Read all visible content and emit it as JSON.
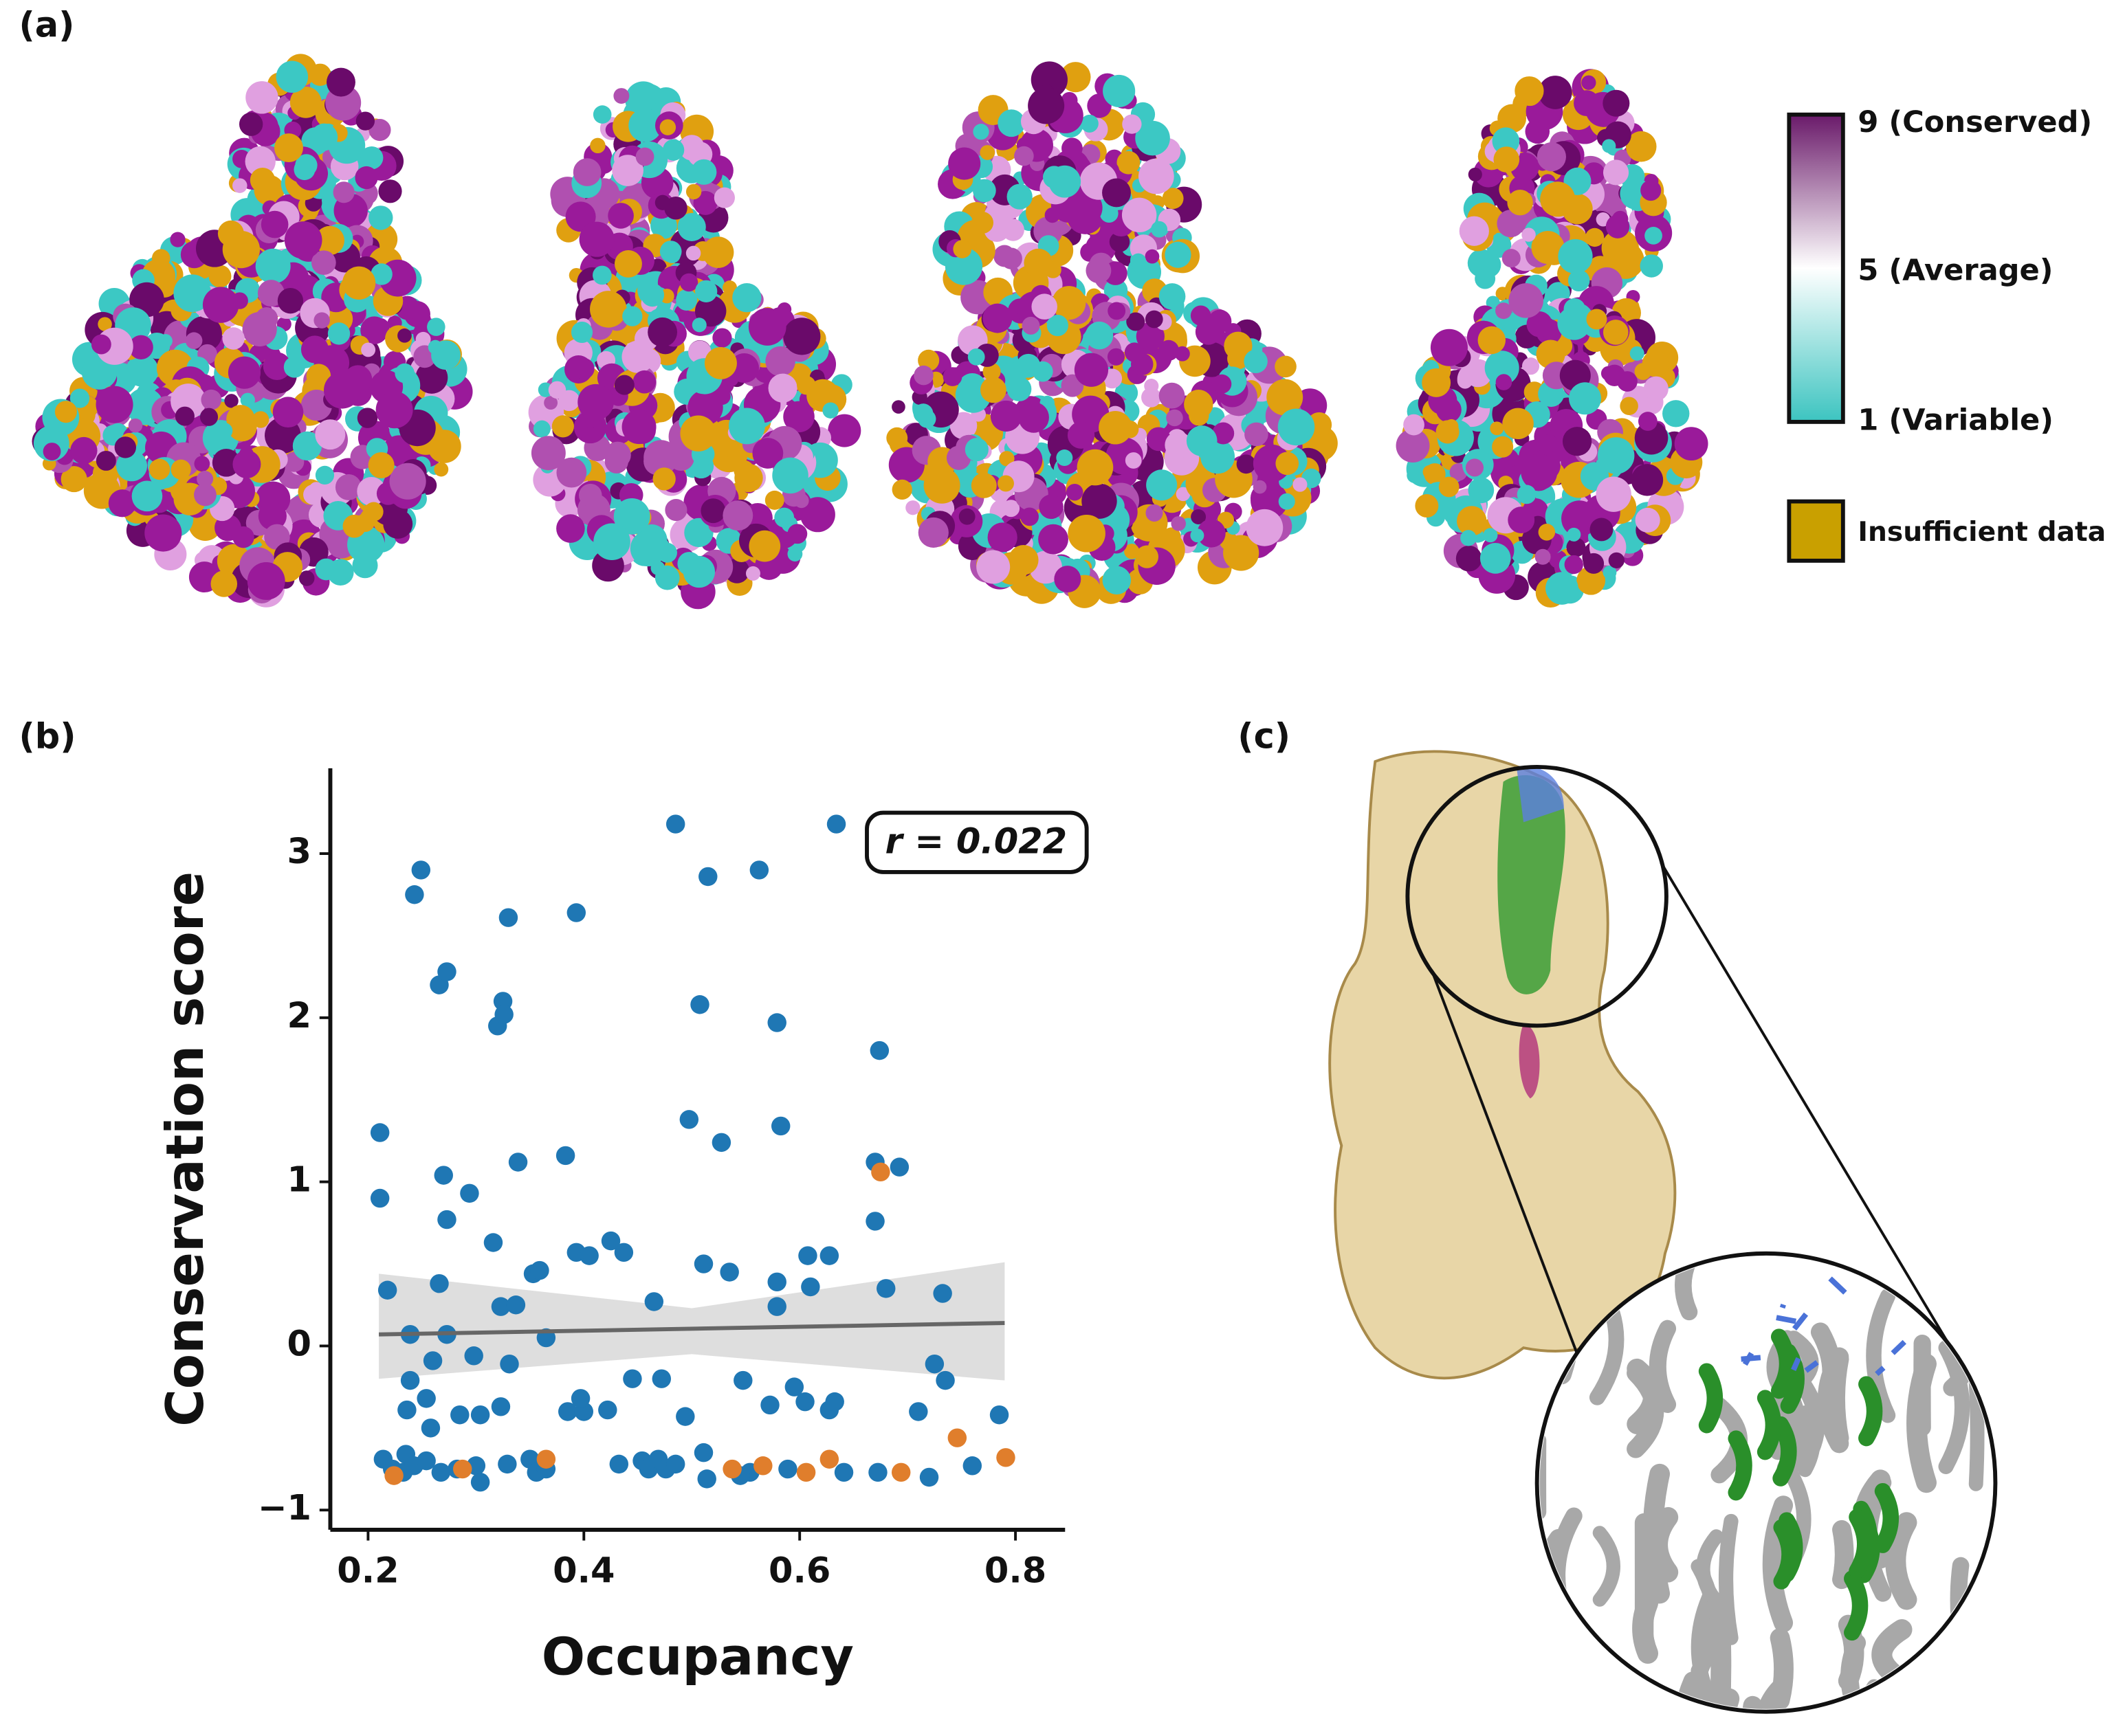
{
  "panels": {
    "a": "(a)",
    "b": "(b)",
    "c": "(c)"
  },
  "colorbar": {
    "top": "9  (Conserved)",
    "middle": "5  (Average)",
    "bottom": "1  (Variable)",
    "insufficient": "Insufficient data"
  },
  "chart_data": {
    "type": "scatter",
    "xlabel": "Occupancy",
    "ylabel": "Conservation score",
    "annotation": "r = 0.022",
    "xlim": [
      0.165,
      0.846
    ],
    "ylim": [
      -1.12,
      3.52
    ],
    "xticks": [
      0.2,
      0.4,
      0.6,
      0.8
    ],
    "yticks": [
      {
        "value": -1,
        "label": "−1"
      },
      0,
      1,
      2,
      3
    ],
    "series": [
      {
        "color": "#1f77b4",
        "x": [
          0.211,
          0.211,
          0.218,
          0.249,
          0.243,
          0.235,
          0.236,
          0.239,
          0.239,
          0.266,
          0.273,
          0.27,
          0.273,
          0.266,
          0.273,
          0.26,
          0.254,
          0.258,
          0.285,
          0.298,
          0.294,
          0.32,
          0.325,
          0.326,
          0.33,
          0.316,
          0.323,
          0.337,
          0.339,
          0.331,
          0.323,
          0.353,
          0.359,
          0.365,
          0.383,
          0.393,
          0.385,
          0.4,
          0.397,
          0.393,
          0.405,
          0.425,
          0.437,
          0.422,
          0.445,
          0.472,
          0.465,
          0.485,
          0.494,
          0.4975,
          0.5075,
          0.515,
          0.511,
          0.5275,
          0.535,
          0.5475,
          0.5625,
          0.579,
          0.5825,
          0.5725,
          0.579,
          0.579,
          0.595,
          0.605,
          0.61,
          0.6075,
          0.6275,
          0.634,
          0.6275,
          0.6325,
          0.674,
          0.67,
          0.6925,
          0.67,
          0.68,
          0.71,
          0.7325,
          0.725,
          0.735,
          0.785,
          0.72,
          0.76,
          0.6725,
          0.214,
          0.2225,
          0.2325,
          0.2425,
          0.254,
          0.2675,
          0.2825,
          0.3,
          0.329,
          0.35,
          0.356,
          0.365,
          0.4325,
          0.454,
          0.46,
          0.469,
          0.476,
          0.485,
          0.511,
          0.514,
          0.554,
          0.545,
          0.589,
          0.641,
          0.304,
          0.304
        ],
        "y": [
          1.3,
          0.9,
          0.34,
          2.9,
          2.75,
          -0.66,
          -0.39,
          -0.21,
          0.07,
          2.2,
          2.28,
          1.04,
          0.77,
          0.38,
          0.07,
          -0.09,
          -0.32,
          -0.5,
          -0.42,
          -0.06,
          0.93,
          1.95,
          2.1,
          2.02,
          2.61,
          0.63,
          0.24,
          0.25,
          1.12,
          -0.11,
          -0.37,
          0.44,
          0.46,
          0.05,
          1.16,
          2.64,
          -0.4,
          -0.4,
          -0.32,
          0.57,
          0.55,
          0.64,
          0.57,
          -0.39,
          -0.2,
          -0.2,
          0.27,
          3.18,
          -0.43,
          1.38,
          2.08,
          2.86,
          0.5,
          1.24,
          0.45,
          -0.21,
          2.9,
          1.97,
          1.34,
          -0.36,
          0.24,
          0.39,
          -0.25,
          -0.34,
          0.36,
          0.55,
          0.55,
          3.18,
          -0.39,
          -0.34,
          1.8,
          1.12,
          1.09,
          0.76,
          0.35,
          -0.4,
          0.32,
          -0.11,
          -0.21,
          -0.42,
          -0.8,
          -0.73,
          -0.77,
          -0.69,
          -0.75,
          -0.77,
          -0.73,
          -0.7,
          -0.77,
          -0.75,
          -0.73,
          -0.72,
          -0.69,
          -0.77,
          -0.75,
          -0.72,
          -0.7,
          -0.75,
          -0.69,
          -0.75,
          -0.72,
          -0.65,
          -0.81,
          -0.77,
          -0.79,
          -0.75,
          -0.77,
          -0.42,
          -0.83
        ]
      },
      {
        "color": "#e07e2c",
        "x": [
          0.224,
          0.2875,
          0.365,
          0.5375,
          0.566,
          0.606,
          0.6275,
          0.675,
          0.694,
          0.746,
          0.791
        ],
        "y": [
          -0.79,
          -0.75,
          -0.69,
          -0.75,
          -0.73,
          -0.77,
          -0.69,
          1.06,
          -0.77,
          -0.56,
          -0.68
        ]
      }
    ],
    "fit": {
      "color": "#666666",
      "x": [
        0.21,
        0.79
      ],
      "y": [
        0.07,
        0.14
      ]
    },
    "band": {
      "color": "#d3d3d3",
      "x": [
        0.21,
        0.5,
        0.79
      ],
      "lower": [
        -0.2,
        -0.05,
        -0.21
      ],
      "upper": [
        0.44,
        0.23,
        0.51
      ]
    }
  }
}
